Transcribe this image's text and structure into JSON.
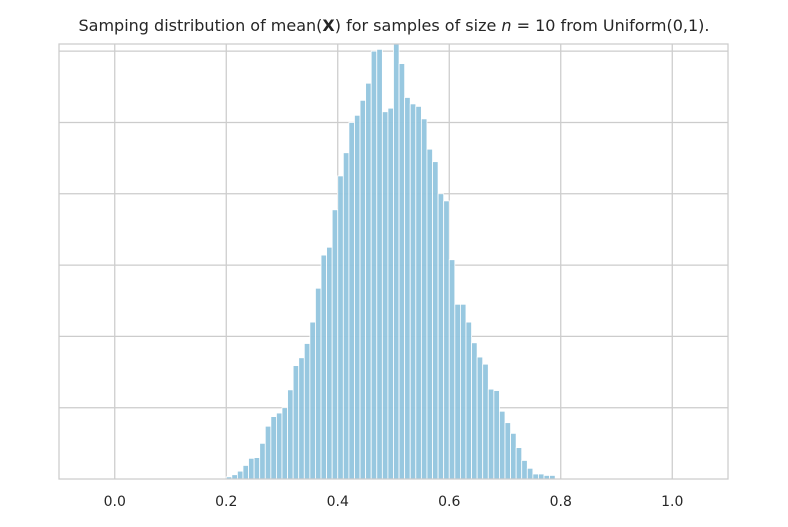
{
  "chart_data": {
    "type": "bar",
    "title_parts": [
      {
        "text": "Samping distribution of mean(",
        "style": "normal"
      },
      {
        "text": "X",
        "style": "bold"
      },
      {
        "text": ") for samples of size ",
        "style": "normal"
      },
      {
        "text": "n",
        "style": "italic"
      },
      {
        "text": " = 10 from Uniform(0,1).",
        "style": "normal"
      }
    ],
    "xlabel": "",
    "ylabel": "",
    "xlim": [
      -0.1,
      1.1
    ],
    "ylim": [
      0,
      1220
    ],
    "x_ticks": [
      0.0,
      0.2,
      0.4,
      0.6,
      0.8,
      1.0
    ],
    "x_tick_labels": [
      "0.0",
      "0.2",
      "0.4",
      "0.6",
      "0.8",
      "1.0"
    ],
    "y_ticks": [
      200,
      400,
      600,
      800,
      1000,
      1200
    ],
    "y_tick_labels_visible": false,
    "grid": true,
    "bar_color": "#92c5de",
    "bar_edge_color": "#ffffff",
    "bin_width": 0.01,
    "bins_start": [
      0.2,
      0.21,
      0.22,
      0.23,
      0.24,
      0.25,
      0.26,
      0.27,
      0.28,
      0.29,
      0.3,
      0.31,
      0.32,
      0.33,
      0.34,
      0.35,
      0.36,
      0.37,
      0.38,
      0.39,
      0.4,
      0.41,
      0.42,
      0.43,
      0.44,
      0.45,
      0.46,
      0.47,
      0.48,
      0.49,
      0.5,
      0.51,
      0.52,
      0.53,
      0.54,
      0.55,
      0.56,
      0.57,
      0.58,
      0.59,
      0.6,
      0.61,
      0.62,
      0.63,
      0.64,
      0.65,
      0.66,
      0.67,
      0.68,
      0.69,
      0.7,
      0.71,
      0.72,
      0.73,
      0.74,
      0.75,
      0.76,
      0.77,
      0.78
    ],
    "values": [
      6,
      12,
      22,
      38,
      58,
      60,
      100,
      148,
      175,
      185,
      200,
      250,
      318,
      340,
      380,
      440,
      535,
      628,
      650,
      755,
      850,
      915,
      1000,
      1020,
      1062,
      1110,
      1200,
      1205,
      1030,
      1040,
      1222,
      1165,
      1070,
      1052,
      1045,
      1010,
      925,
      890,
      800,
      780,
      615,
      490,
      490,
      440,
      382,
      342,
      322,
      252,
      248,
      190,
      158,
      128,
      88,
      52,
      30,
      14,
      14,
      10,
      10
    ]
  }
}
